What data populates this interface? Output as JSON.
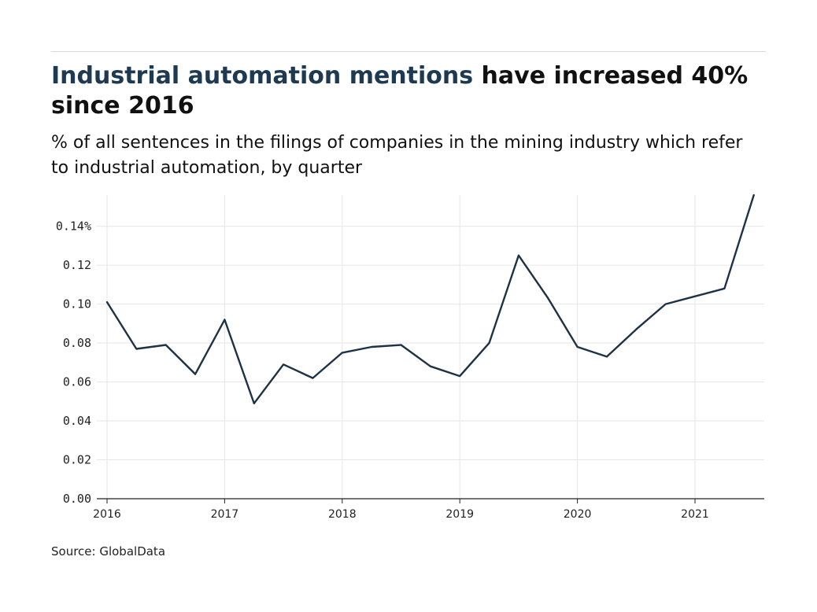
{
  "header": {
    "title_highlight": "Industrial automation mentions",
    "title_rest": " have increased 40% since 2016",
    "subtitle": "% of all sentences in the filings of companies in the mining industry which refer to industrial automation, by quarter"
  },
  "footer": {
    "source": "Source: GlobalData"
  },
  "colors": {
    "line": "#1e3247",
    "grid": "#e6e6e6",
    "axis": "#222222",
    "highlight": "#1e3a52"
  },
  "chart_data": {
    "type": "line",
    "title": "Industrial automation mentions have increased 40% since 2016",
    "subtitle": "% of all sentences in the filings of companies in the mining industry which refer to industrial automation, by quarter",
    "xlabel": "",
    "ylabel": "",
    "x": [
      "2016-Q1",
      "2016-Q2",
      "2016-Q3",
      "2016-Q4",
      "2017-Q1",
      "2017-Q2",
      "2017-Q3",
      "2017-Q4",
      "2018-Q1",
      "2018-Q2",
      "2018-Q3",
      "2018-Q4",
      "2019-Q1",
      "2019-Q2",
      "2019-Q3",
      "2019-Q4",
      "2020-Q1",
      "2020-Q2",
      "2020-Q3",
      "2020-Q4",
      "2021-Q1",
      "2021-Q2",
      "2021-Q3"
    ],
    "series": [
      {
        "values": [
          0.101,
          0.077,
          0.079,
          0.064,
          0.092,
          0.049,
          0.069,
          0.062,
          0.075,
          0.078,
          0.079,
          0.068,
          0.063,
          0.08,
          0.125,
          0.103,
          0.078,
          0.073,
          0.087,
          0.1,
          0.104,
          0.108,
          0.156
        ]
      }
    ],
    "xticks": [
      "2016",
      "2017",
      "2018",
      "2019",
      "2020",
      "2021"
    ],
    "yticks": [
      "0.00",
      "0.02",
      "0.04",
      "0.06",
      "0.08",
      "0.10",
      "0.12",
      "0.14%"
    ],
    "ytick_values": [
      0,
      0.02,
      0.04,
      0.06,
      0.08,
      0.1,
      0.12,
      0.14
    ],
    "ylim": [
      0,
      0.156
    ],
    "xlim": [
      "2015-Q4 end",
      "2021-Q3"
    ],
    "grid": true,
    "legend": "none"
  }
}
